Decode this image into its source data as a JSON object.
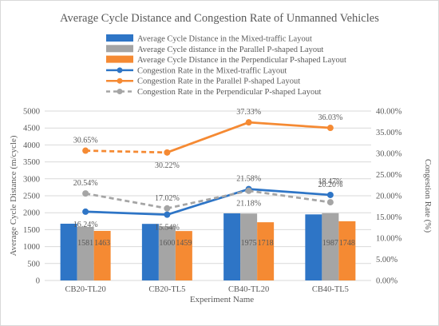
{
  "chart_data": {
    "type": "bar",
    "title": "Average Cycle Distance and Congestion Rate of Unmanned Vehicles",
    "xlabel": "Experiment Name",
    "ylabel": "Average Cycle Distance (m/cycle)",
    "y2label": "Congestion Rate (%)",
    "categories": [
      "CB20-TL20",
      "CB20-TL5",
      "CB40-TL20",
      "CB40-TL5"
    ],
    "ylim": [
      0,
      5000
    ],
    "y_ticks": [
      "0",
      "500",
      "1000",
      "1500",
      "2000",
      "2500",
      "3000",
      "3500",
      "4000",
      "4500",
      "5000"
    ],
    "y2lim": [
      0,
      40
    ],
    "y2_ticks": [
      "0.00%",
      "5.00%",
      "10.00%",
      "15.00%",
      "20.00%",
      "25.00%",
      "30.00%",
      "35.00%",
      "40.00%"
    ],
    "legend_position": "top",
    "grid": true,
    "bar_series": [
      {
        "name": "Average Cycle Distance in the Mixed-traffic Layout",
        "color": "#2e75c6",
        "values": [
          1675,
          1670,
          1980,
          1950
        ],
        "labels": [
          "",
          "",
          "",
          ""
        ]
      },
      {
        "name": "Average Cycle distance in the Parallel P-shaped Layout",
        "color": "#a5a5a5",
        "values": [
          1581,
          1600,
          1975,
          1987
        ],
        "labels": [
          "1581",
          "1600",
          "1975",
          "1987"
        ]
      },
      {
        "name": "Average Cycle Distance in the Perpendicular P-shaped Layout",
        "color": "#f58a33",
        "values": [
          1463,
          1459,
          1718,
          1748
        ],
        "labels": [
          "1463",
          "1459",
          "1718",
          "1748"
        ]
      }
    ],
    "line_series": [
      {
        "name": "Congestion Rate in the Mixed-traffic Layout",
        "color": "#2e75c6",
        "dashed": false,
        "values": [
          16.24,
          15.54,
          21.58,
          20.2
        ],
        "labels": [
          "16.24%",
          "15.54%",
          "21.58%",
          "20.20%"
        ]
      },
      {
        "name": "Congestion Rate in the Parallel P-shaped Layout",
        "color": "#f58a33",
        "dashed": false,
        "dashed_first_segment": true,
        "values": [
          30.65,
          30.22,
          37.33,
          36.03
        ],
        "labels": [
          "30.65%",
          "30.22%",
          "37.33%",
          "36.03%"
        ]
      },
      {
        "name": "Congestion Rate in the Perpendicular P-shaped Layout",
        "color": "#a5a5a5",
        "dashed": true,
        "values": [
          20.54,
          17.02,
          21.18,
          18.47
        ],
        "labels": [
          "20.54%",
          "17.02%",
          "21.18%",
          "18.47%"
        ]
      }
    ]
  }
}
